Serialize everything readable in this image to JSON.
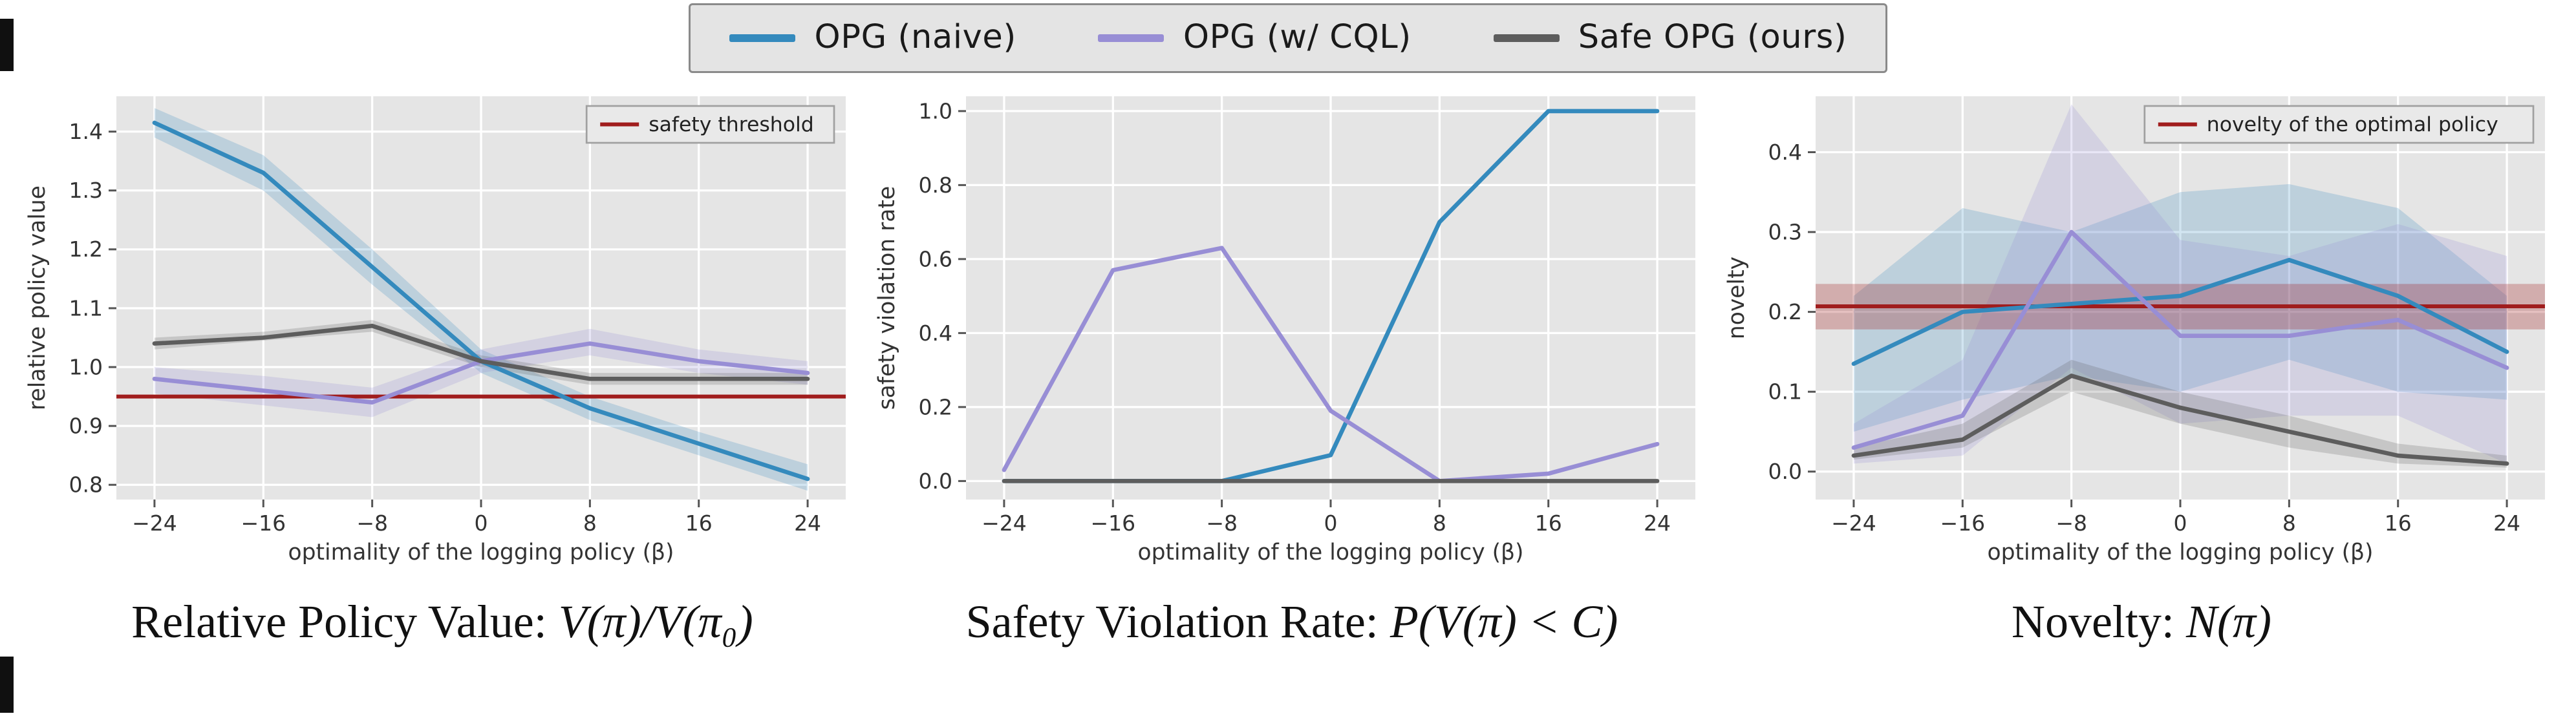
{
  "figure": {
    "legend": {
      "items": [
        {
          "label": "OPG (naive)",
          "color": "#348abd"
        },
        {
          "label": "OPG (w/ CQL)",
          "color": "#988ed5"
        },
        {
          "label": "Safe OPG (ours)",
          "color": "#5d5d5d"
        }
      ]
    }
  },
  "captions": [
    {
      "text": "Relative Policy Value: ",
      "math": "V(π)/V(π₀)"
    },
    {
      "text": "Safety Violation Rate: ",
      "math": "P(V(π) < C)"
    },
    {
      "text": "Novelty: ",
      "math": "N(π)"
    }
  ],
  "chart_data": [
    {
      "type": "line",
      "xlabel": "optimality of the logging policy (β)",
      "ylabel": "relative policy value",
      "x": [
        -24,
        -16,
        -8,
        0,
        8,
        16,
        24
      ],
      "xlim": [
        -26.8,
        26.8
      ],
      "ylim": [
        0.775,
        1.46
      ],
      "yticks": [
        0.8,
        0.9,
        1.0,
        1.1,
        1.2,
        1.3,
        1.4
      ],
      "grid": true,
      "plot_bg": "#e5e5e5",
      "series": [
        {
          "name": "OPG (naive)",
          "color": "#348abd",
          "values": [
            1.415,
            1.33,
            1.17,
            1.01,
            0.93,
            0.87,
            0.81
          ],
          "band_lower": [
            1.39,
            1.3,
            1.14,
            0.99,
            0.91,
            0.85,
            0.79
          ],
          "band_upper": [
            1.44,
            1.36,
            1.2,
            1.03,
            0.95,
            0.89,
            0.835
          ]
        },
        {
          "name": "OPG (w/ CQL)",
          "color": "#988ed5",
          "values": [
            0.98,
            0.96,
            0.94,
            1.01,
            1.04,
            1.01,
            0.99
          ],
          "band_lower": [
            0.955,
            0.935,
            0.915,
            0.99,
            1.02,
            0.99,
            0.97
          ],
          "band_upper": [
            1.0,
            0.985,
            0.965,
            1.03,
            1.065,
            1.03,
            1.01
          ]
        },
        {
          "name": "Safe OPG (ours)",
          "color": "#5d5d5d",
          "values": [
            1.04,
            1.05,
            1.07,
            1.01,
            0.98,
            0.98,
            0.98
          ],
          "band_lower": [
            1.03,
            1.045,
            1.06,
            1.0,
            0.97,
            0.97,
            0.97
          ],
          "band_upper": [
            1.05,
            1.06,
            1.08,
            1.02,
            0.99,
            0.99,
            0.99
          ]
        }
      ],
      "threshold": {
        "label": "safety threshold",
        "value": 0.95,
        "color": "#a01d1d"
      },
      "legend_position": "upper right"
    },
    {
      "type": "line",
      "xlabel": "optimality of the logging policy (β)",
      "ylabel": "safety violation rate",
      "x": [
        -24,
        -16,
        -8,
        0,
        8,
        16,
        24
      ],
      "xlim": [
        -26.8,
        26.8
      ],
      "ylim": [
        -0.05,
        1.04
      ],
      "yticks": [
        0.0,
        0.2,
        0.4,
        0.6,
        0.8,
        1.0
      ],
      "grid": true,
      "plot_bg": "#e5e5e5",
      "series": [
        {
          "name": "OPG (naive)",
          "color": "#348abd",
          "values": [
            0.0,
            0.0,
            0.0,
            0.07,
            0.7,
            1.0,
            1.0
          ]
        },
        {
          "name": "OPG (w/ CQL)",
          "color": "#988ed5",
          "values": [
            0.03,
            0.57,
            0.63,
            0.19,
            0.0,
            0.02,
            0.1
          ]
        },
        {
          "name": "Safe OPG (ours)",
          "color": "#5d5d5d",
          "values": [
            0.0,
            0.0,
            0.0,
            0.0,
            0.0,
            0.0,
            0.0
          ]
        }
      ],
      "threshold": null
    },
    {
      "type": "line",
      "xlabel": "optimality of the logging policy (β)",
      "ylabel": "novelty",
      "x": [
        -24,
        -16,
        -8,
        0,
        8,
        16,
        24
      ],
      "xlim": [
        -26.8,
        26.8
      ],
      "ylim": [
        -0.035,
        0.47
      ],
      "yticks": [
        0.0,
        0.1,
        0.2,
        0.3,
        0.4
      ],
      "grid": true,
      "plot_bg": "#e5e5e5",
      "series": [
        {
          "name": "OPG (naive)",
          "color": "#348abd",
          "values": [
            0.135,
            0.2,
            0.21,
            0.22,
            0.265,
            0.22,
            0.15
          ],
          "band_lower": [
            0.05,
            0.09,
            0.12,
            0.1,
            0.14,
            0.1,
            0.09
          ],
          "band_upper": [
            0.22,
            0.33,
            0.3,
            0.35,
            0.36,
            0.33,
            0.22
          ]
        },
        {
          "name": "OPG (w/ CQL)",
          "color": "#988ed5",
          "values": [
            0.03,
            0.07,
            0.3,
            0.17,
            0.17,
            0.19,
            0.13
          ],
          "band_lower": [
            0.01,
            0.02,
            0.13,
            0.06,
            0.07,
            0.07,
            0.01
          ],
          "band_upper": [
            0.06,
            0.14,
            0.46,
            0.29,
            0.27,
            0.31,
            0.27
          ]
        },
        {
          "name": "Safe OPG (ours)",
          "color": "#5d5d5d",
          "values": [
            0.02,
            0.04,
            0.12,
            0.08,
            0.05,
            0.02,
            0.01
          ],
          "band_lower": [
            0.015,
            0.03,
            0.1,
            0.06,
            0.03,
            0.01,
            0.005
          ],
          "band_upper": [
            0.03,
            0.06,
            0.14,
            0.1,
            0.07,
            0.035,
            0.02
          ]
        }
      ],
      "threshold": {
        "label": "novelty of the optimal policy",
        "value": 0.207,
        "color": "#a01d1d",
        "band": [
          0.178,
          0.235
        ]
      },
      "legend_position": "upper right"
    }
  ]
}
